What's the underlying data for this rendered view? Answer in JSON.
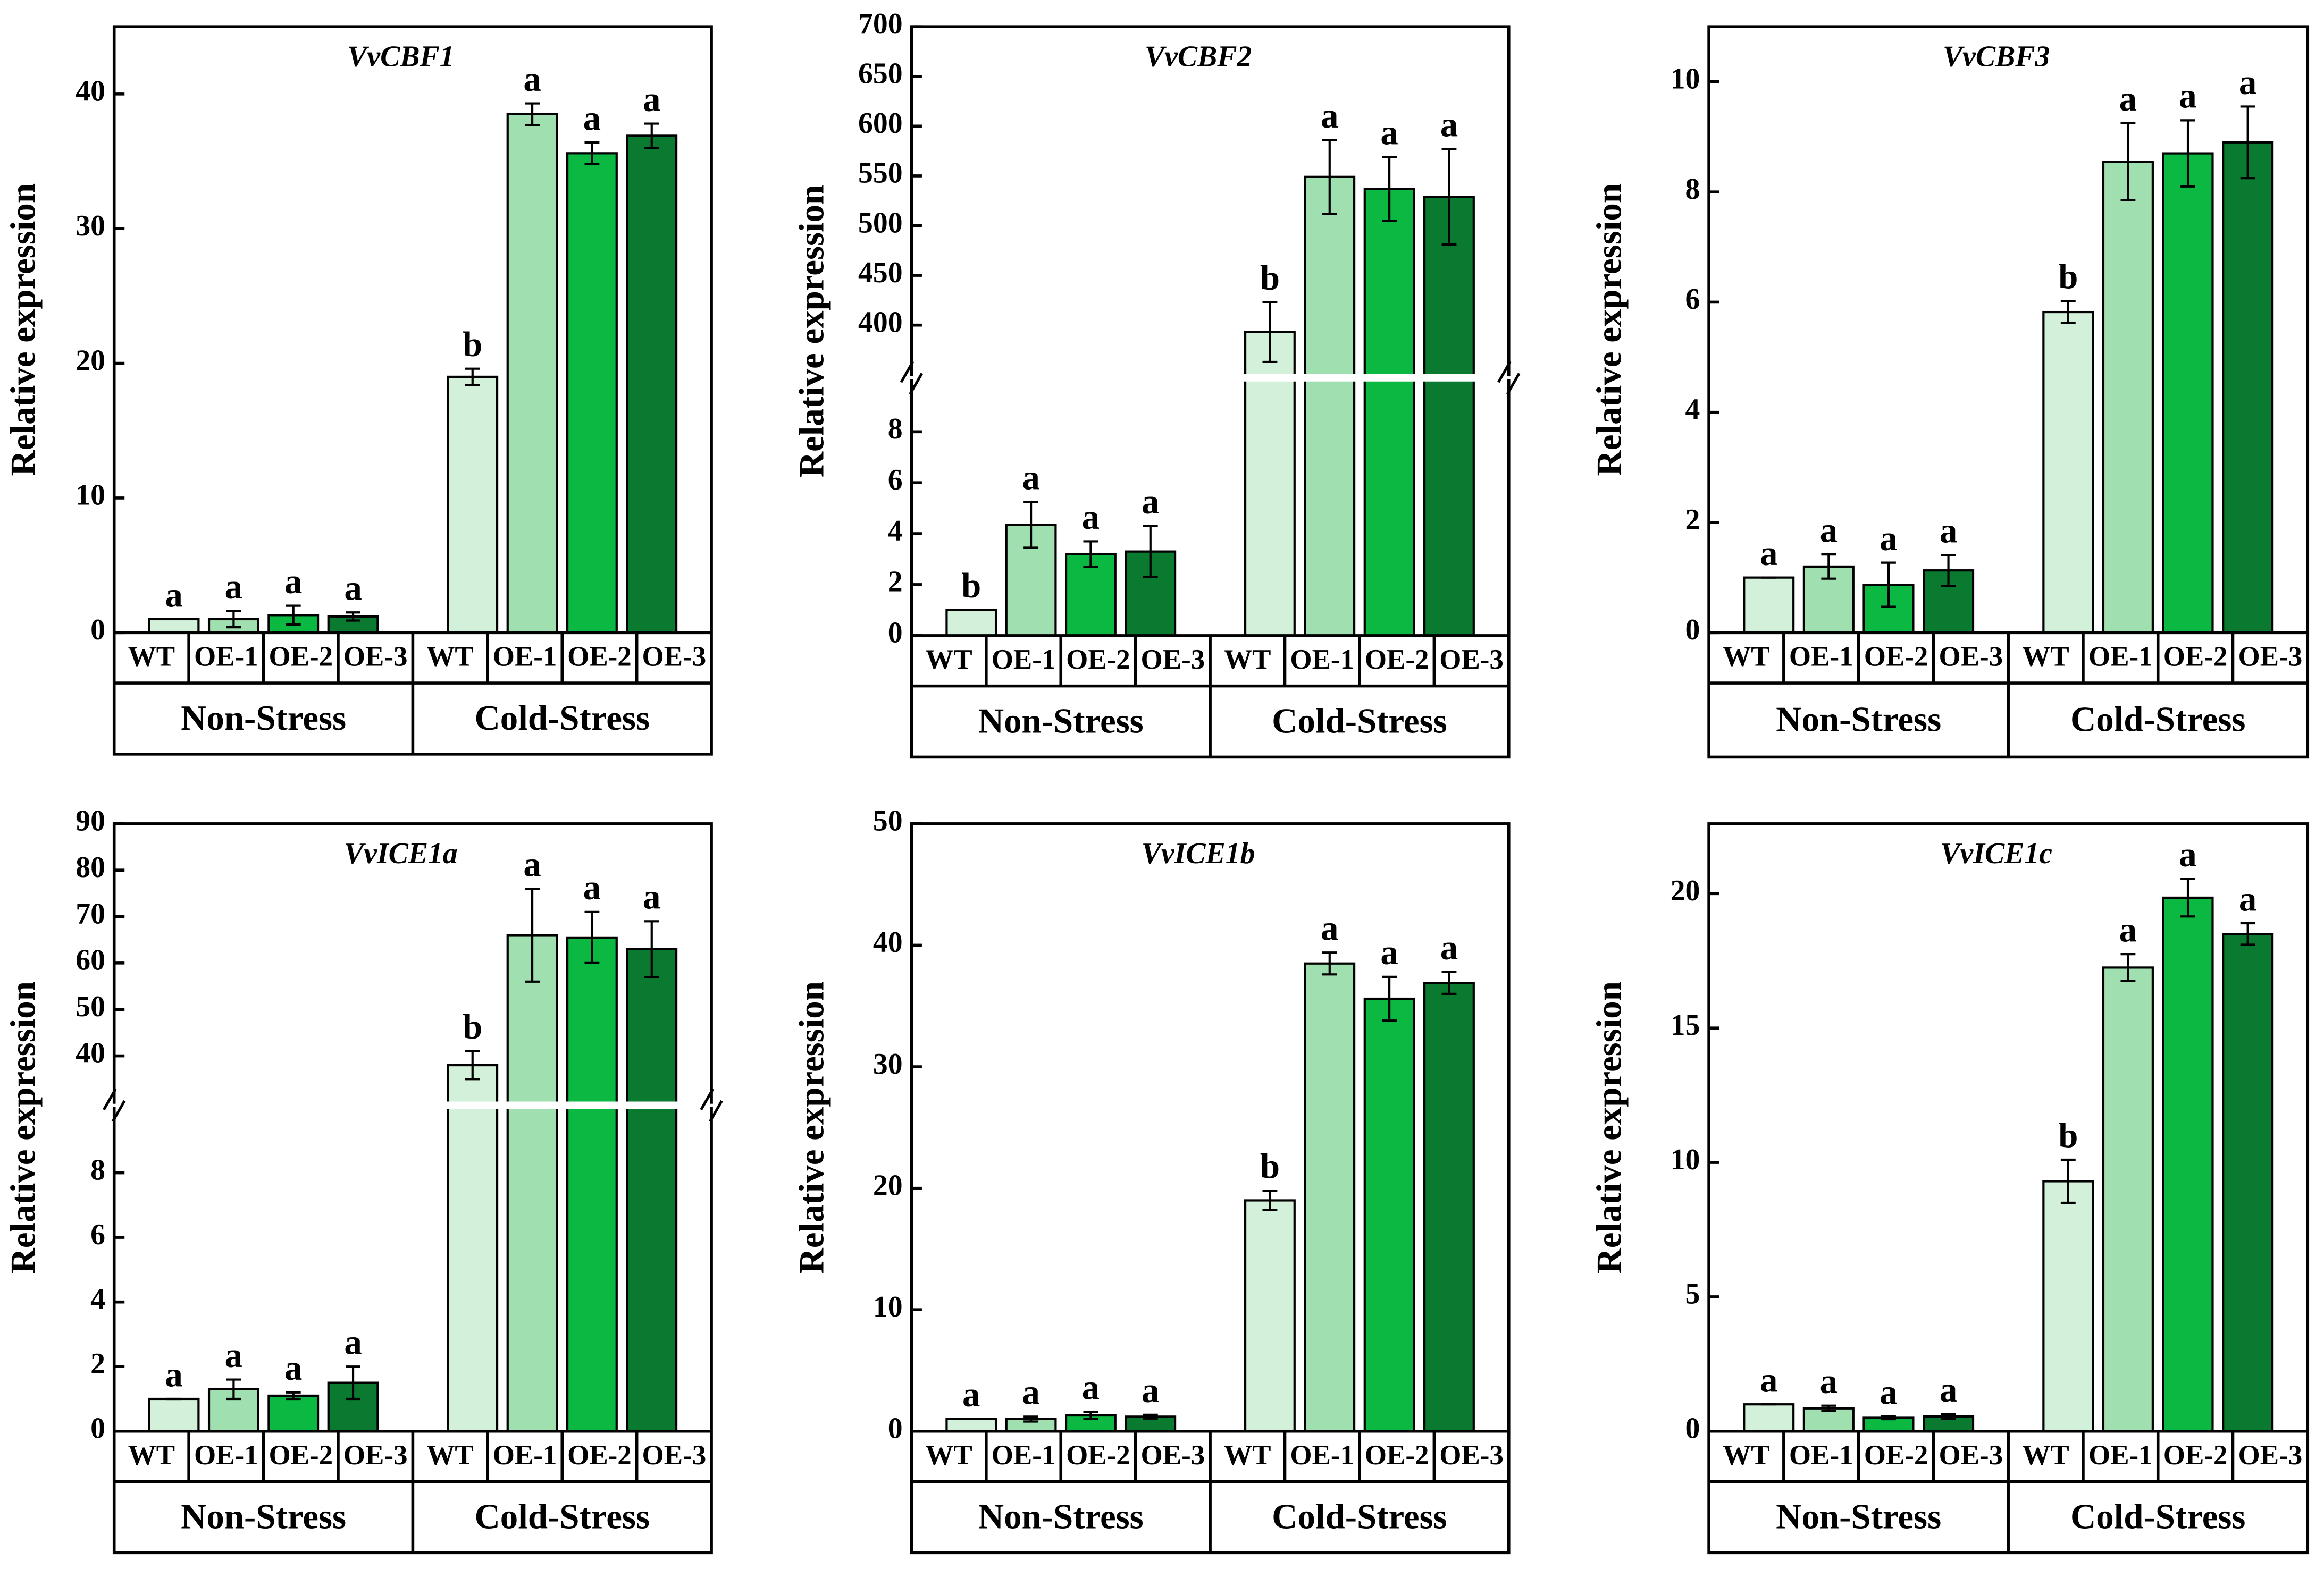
{
  "chart_data": [
    {
      "type": "bar",
      "title": "VvCBF1",
      "y_label": "Relative expression",
      "groups": [
        "Non-Stress",
        "Cold-Stress"
      ],
      "series": [
        {
          "name": "WT",
          "color": "#d3f0da",
          "values": [
            1.0,
            19.0
          ],
          "errors": [
            0,
            0.6
          ],
          "letters": [
            "a",
            "b"
          ]
        },
        {
          "name": "OE-1",
          "color": "#9fdfb0",
          "values": [
            1.0,
            38.5
          ],
          "errors": [
            0.6,
            0.8
          ],
          "letters": [
            "a",
            "a"
          ]
        },
        {
          "name": "OE-2",
          "color": "#0bb842",
          "values": [
            1.3,
            35.6
          ],
          "errors": [
            0.7,
            0.8
          ],
          "letters": [
            "a",
            "a"
          ]
        },
        {
          "name": "OE-3",
          "color": "#0b7a31",
          "values": [
            1.2,
            36.9
          ],
          "errors": [
            0.3,
            0.9
          ],
          "letters": [
            "a",
            "a"
          ]
        }
      ],
      "ylim": [
        0,
        45
      ],
      "yticks": [
        0,
        10,
        20,
        30,
        40
      ]
    },
    {
      "type": "bar",
      "title": "VvCBF2",
      "y_label": "Relative expression",
      "groups": [
        "Non-Stress",
        "Cold-Stress"
      ],
      "series": [
        {
          "name": "WT",
          "color": "#d3f0da",
          "values": [
            1.0,
            393
          ],
          "errors": [
            0,
            30
          ],
          "letters": [
            "b",
            "b"
          ]
        },
        {
          "name": "OE-1",
          "color": "#9fdfb0",
          "values": [
            4.35,
            549
          ],
          "errors": [
            0.9,
            37
          ],
          "letters": [
            "a",
            "a"
          ]
        },
        {
          "name": "OE-2",
          "color": "#0bb842",
          "values": [
            3.2,
            537
          ],
          "errors": [
            0.5,
            32
          ],
          "letters": [
            "a",
            "a"
          ]
        },
        {
          "name": "OE-3",
          "color": "#0b7a31",
          "values": [
            3.3,
            529
          ],
          "errors": [
            1.0,
            48
          ],
          "letters": [
            "a",
            "a"
          ]
        }
      ],
      "ylim": [
        0,
        10
      ],
      "yticks": [
        0,
        2,
        4,
        6,
        8
      ],
      "axis_break": {
        "ylim": [
          350,
          700
        ],
        "yticks": [
          400,
          450,
          500,
          550,
          600,
          650,
          700
        ]
      }
    },
    {
      "type": "bar",
      "title": "VvCBF3",
      "y_label": "Relative expression",
      "groups": [
        "Non-Stress",
        "Cold-Stress"
      ],
      "series": [
        {
          "name": "WT",
          "color": "#d3f0da",
          "values": [
            1.0,
            5.82
          ],
          "errors": [
            0,
            0.2
          ],
          "letters": [
            "a",
            "b"
          ]
        },
        {
          "name": "OE-1",
          "color": "#9fdfb0",
          "values": [
            1.2,
            8.55
          ],
          "errors": [
            0.22,
            0.7
          ],
          "letters": [
            "a",
            "a"
          ]
        },
        {
          "name": "OE-2",
          "color": "#0bb842",
          "values": [
            0.87,
            8.7
          ],
          "errors": [
            0.4,
            0.6
          ],
          "letters": [
            "a",
            "a"
          ]
        },
        {
          "name": "OE-3",
          "color": "#0b7a31",
          "values": [
            1.13,
            8.9
          ],
          "errors": [
            0.28,
            0.65
          ],
          "letters": [
            "a",
            "a"
          ]
        }
      ],
      "ylim": [
        0,
        11
      ],
      "yticks": [
        0,
        2,
        4,
        6,
        8,
        10
      ]
    },
    {
      "type": "bar",
      "title": "VvICE1a",
      "y_label": "Relative expression",
      "groups": [
        "Non-Stress",
        "Cold-Stress"
      ],
      "series": [
        {
          "name": "WT",
          "color": "#d3f0da",
          "values": [
            1.0,
            38
          ],
          "errors": [
            0,
            3
          ],
          "letters": [
            "a",
            "b"
          ]
        },
        {
          "name": "OE-1",
          "color": "#9fdfb0",
          "values": [
            1.3,
            66
          ],
          "errors": [
            0.3,
            10
          ],
          "letters": [
            "a",
            "a"
          ]
        },
        {
          "name": "OE-2",
          "color": "#0bb842",
          "values": [
            1.1,
            65.5
          ],
          "errors": [
            0.1,
            5.5
          ],
          "letters": [
            "a",
            "a"
          ]
        },
        {
          "name": "OE-3",
          "color": "#0b7a31",
          "values": [
            1.5,
            63
          ],
          "errors": [
            0.5,
            6
          ],
          "letters": [
            "a",
            "a"
          ]
        }
      ],
      "ylim": [
        0,
        10
      ],
      "yticks": [
        0,
        2,
        4,
        6,
        8
      ],
      "axis_break": {
        "ylim": [
          30,
          90
        ],
        "yticks": [
          40,
          50,
          60,
          70,
          80,
          90
        ]
      }
    },
    {
      "type": "bar",
      "title": "VvICE1b",
      "y_label": "Relative expression",
      "groups": [
        "Non-Stress",
        "Cold-Stress"
      ],
      "series": [
        {
          "name": "WT",
          "color": "#d3f0da",
          "values": [
            1.0,
            19.0
          ],
          "errors": [
            0,
            0.8
          ],
          "letters": [
            "a",
            "b"
          ]
        },
        {
          "name": "OE-1",
          "color": "#9fdfb0",
          "values": [
            1.0,
            38.5
          ],
          "errors": [
            0.2,
            0.9
          ],
          "letters": [
            "a",
            "a"
          ]
        },
        {
          "name": "OE-2",
          "color": "#0bb842",
          "values": [
            1.3,
            35.6
          ],
          "errors": [
            0.3,
            1.8
          ],
          "letters": [
            "a",
            "a"
          ]
        },
        {
          "name": "OE-3",
          "color": "#0b7a31",
          "values": [
            1.2,
            36.9
          ],
          "errors": [
            0.15,
            0.9
          ],
          "letters": [
            "a",
            "a"
          ]
        }
      ],
      "ylim": [
        0,
        50
      ],
      "yticks": [
        0,
        10,
        20,
        30,
        40,
        50
      ]
    },
    {
      "type": "bar",
      "title": "VvICE1c",
      "y_label": "Relative expression",
      "groups": [
        "Non-Stress",
        "Cold-Stress"
      ],
      "series": [
        {
          "name": "WT",
          "color": "#d3f0da",
          "values": [
            1.0,
            9.3
          ],
          "errors": [
            0,
            0.8
          ],
          "letters": [
            "a",
            "b"
          ]
        },
        {
          "name": "OE-1",
          "color": "#9fdfb0",
          "values": [
            0.85,
            17.25
          ],
          "errors": [
            0.1,
            0.5
          ],
          "letters": [
            "a",
            "a"
          ]
        },
        {
          "name": "OE-2",
          "color": "#0bb842",
          "values": [
            0.5,
            19.85
          ],
          "errors": [
            0.05,
            0.7
          ],
          "letters": [
            "a",
            "a"
          ]
        },
        {
          "name": "OE-3",
          "color": "#0b7a31",
          "values": [
            0.55,
            18.5
          ],
          "errors": [
            0.08,
            0.4
          ],
          "letters": [
            "a",
            "a"
          ]
        }
      ],
      "ylim": [
        0,
        22.6
      ],
      "yticks": [
        0,
        5,
        10,
        15,
        20
      ]
    }
  ]
}
